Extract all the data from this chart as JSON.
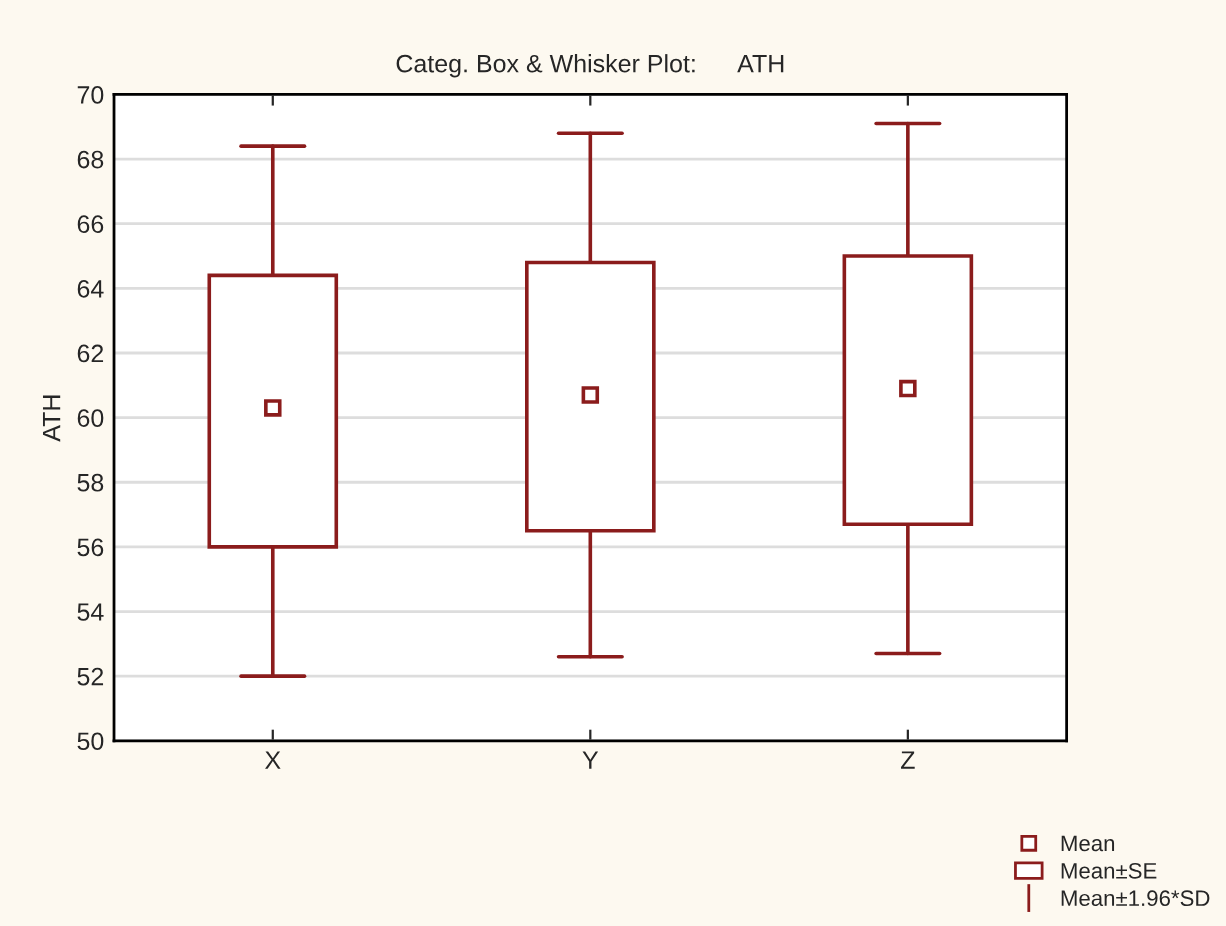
{
  "chart_data": {
    "type": "box",
    "title": "Categ. Box & Whisker Plot:      ATH",
    "ylabel": "ATH",
    "categories": [
      "X",
      "Y",
      "Z"
    ],
    "color": "#8b1c1c",
    "boxes": [
      {
        "low": 52.0,
        "q1": 56.0,
        "q3": 64.4,
        "high": 68.4,
        "mean": 60.3
      },
      {
        "low": 52.6,
        "q1": 56.5,
        "q3": 64.8,
        "high": 68.8,
        "mean": 60.7
      },
      {
        "low": 52.7,
        "q1": 56.7,
        "q3": 65.0,
        "high": 69.1,
        "mean": 60.9
      }
    ],
    "ylim": [
      50,
      70
    ],
    "yticks": [
      50,
      52,
      54,
      56,
      58,
      60,
      62,
      64,
      66,
      68,
      70
    ],
    "grid": "y",
    "annotations": [
      "Mean",
      "Mean±SE",
      "Mean±1.96*SD"
    ]
  }
}
